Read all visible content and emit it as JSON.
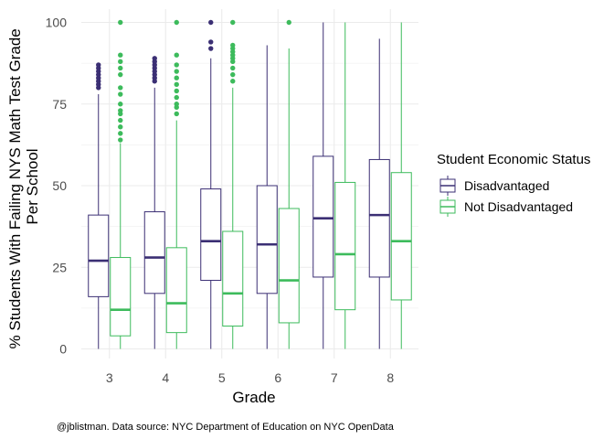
{
  "chart_data": {
    "type": "boxplot",
    "title": "",
    "xlabel": "Grade",
    "ylabel_lines": [
      "% Students With Failing NYS Math Test Grade",
      "Per School"
    ],
    "categories": [
      "3",
      "4",
      "5",
      "6",
      "7",
      "8"
    ],
    "y_ticks": [
      "0",
      "25",
      "50",
      "75",
      "100"
    ],
    "ylim": [
      0,
      100
    ],
    "grid": true,
    "legend": {
      "title": "Student Economic Status",
      "position": "right"
    },
    "series": [
      {
        "name": "Disadvantaged",
        "color": "#3b2f74",
        "boxes": [
          {
            "min": 0,
            "q1": 16,
            "median": 27,
            "q3": 41,
            "max": 78,
            "outliers": [
              80,
              81,
              82,
              83,
              84,
              85,
              86,
              87
            ]
          },
          {
            "min": 0,
            "q1": 17,
            "median": 28,
            "q3": 42,
            "max": 80,
            "outliers": [
              82,
              83,
              84,
              85,
              86,
              87,
              88,
              89
            ]
          },
          {
            "min": 0,
            "q1": 21,
            "median": 33,
            "q3": 49,
            "max": 89,
            "outliers": [
              92,
              94,
              100
            ]
          },
          {
            "min": 0,
            "q1": 17,
            "median": 32,
            "q3": 50,
            "max": 93,
            "outliers": []
          },
          {
            "min": 0,
            "q1": 22,
            "median": 40,
            "q3": 59,
            "max": 100,
            "outliers": []
          },
          {
            "min": 0,
            "q1": 22,
            "median": 41,
            "q3": 58,
            "max": 95,
            "outliers": []
          }
        ]
      },
      {
        "name": "Not Disadvantaged",
        "color": "#3dbb5c",
        "boxes": [
          {
            "min": 0,
            "q1": 4,
            "median": 12,
            "q3": 28,
            "max": 63,
            "outliers": [
              64,
              66,
              68,
              70,
              72,
              73,
              75,
              78,
              80,
              84,
              86,
              88,
              90,
              100
            ]
          },
          {
            "min": 0,
            "q1": 5,
            "median": 14,
            "q3": 31,
            "max": 70,
            "outliers": [
              72,
              74,
              75,
              77,
              79,
              81,
              83,
              85,
              87,
              90,
              100
            ]
          },
          {
            "min": 0,
            "q1": 7,
            "median": 17,
            "q3": 36,
            "max": 80,
            "outliers": [
              82,
              84,
              86,
              88,
              89,
              90,
              91,
              92,
              93,
              100
            ]
          },
          {
            "min": 0,
            "q1": 8,
            "median": 21,
            "q3": 43,
            "max": 92,
            "outliers": [
              100
            ]
          },
          {
            "min": 0,
            "q1": 12,
            "median": 29,
            "q3": 51,
            "max": 100,
            "outliers": []
          },
          {
            "min": 0,
            "q1": 15,
            "median": 33,
            "q3": 54,
            "max": 100,
            "outliers": []
          }
        ]
      }
    ]
  },
  "caption": "@jblistman. Data source: NYC Department of Education on NYC OpenData"
}
